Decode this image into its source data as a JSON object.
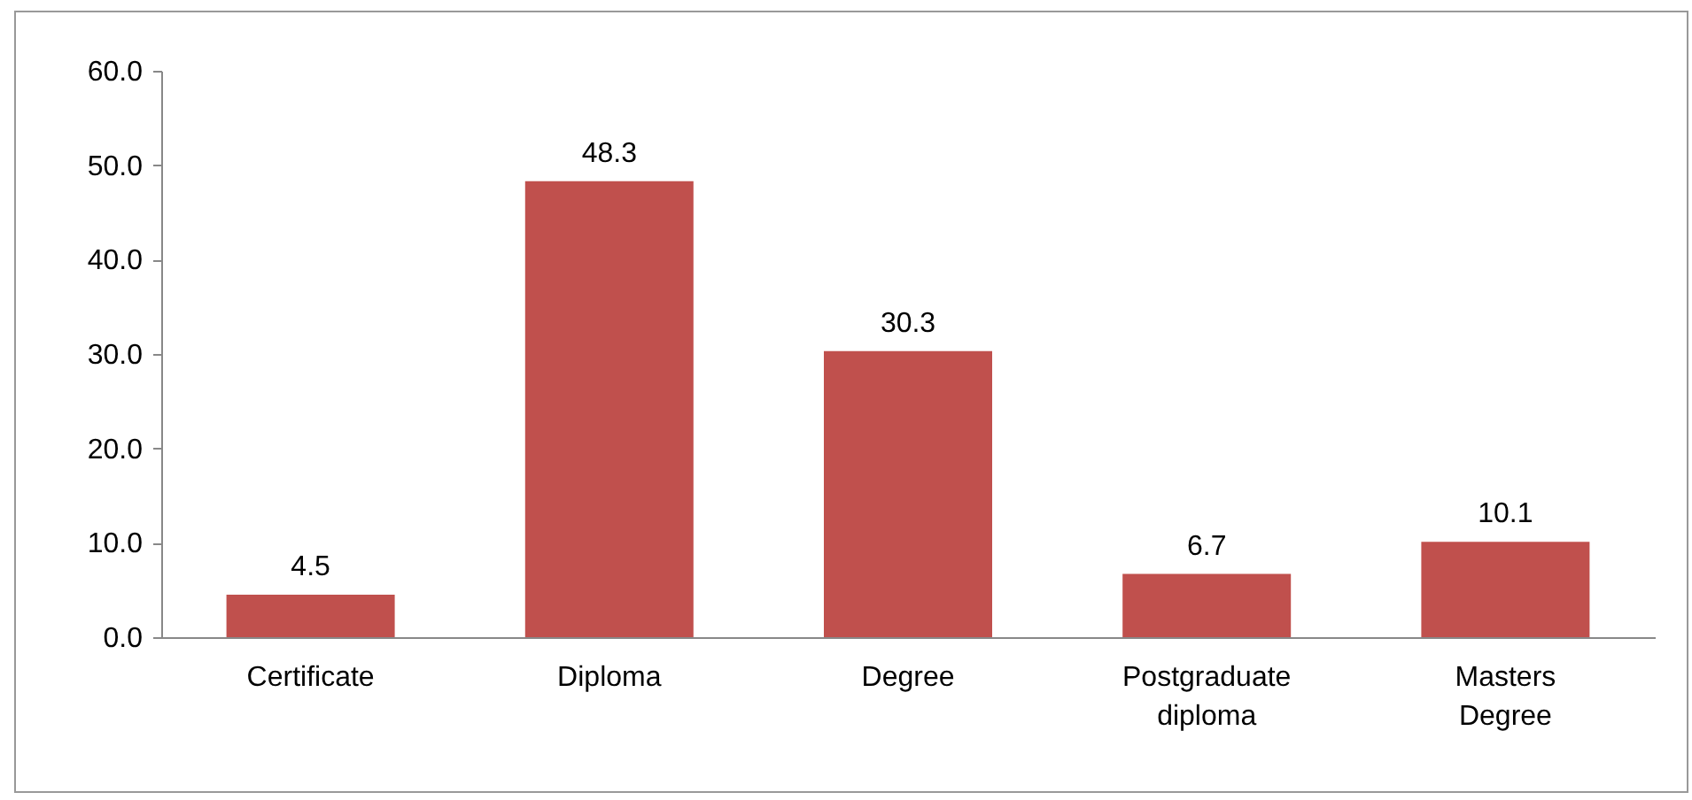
{
  "chart_data": {
    "type": "bar",
    "categories": [
      "Certificate",
      "Diploma",
      "Degree",
      "Postgraduate diploma",
      "Masters Degree"
    ],
    "values": [
      4.5,
      48.3,
      30.3,
      6.7,
      10.1
    ],
    "color": "#c0504d",
    "data_labels": true,
    "ylim": [
      0,
      60
    ],
    "yticks": [
      {
        "value": 0,
        "label": "0.0"
      },
      {
        "value": 10,
        "label": "10.0"
      },
      {
        "value": 20,
        "label": "20.0"
      },
      {
        "value": 30,
        "label": "30.0"
      },
      {
        "value": 40,
        "label": "40.0"
      },
      {
        "value": 50,
        "label": "50.0"
      },
      {
        "value": 60,
        "label": "60.0"
      }
    ],
    "grid": false
  }
}
